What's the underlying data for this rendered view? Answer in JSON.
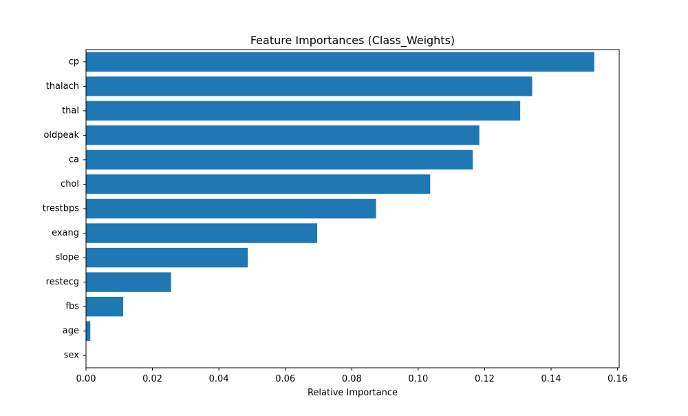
{
  "chart_data": {
    "type": "bar",
    "orientation": "horizontal",
    "title": "Feature Importances (Class_Weights)",
    "xlabel": "Relative Importance",
    "ylabel": "",
    "categories": [
      "cp",
      "thalach",
      "thal",
      "oldpeak",
      "ca",
      "chol",
      "trestbps",
      "exang",
      "slope",
      "restecg",
      "fbs",
      "age",
      "sex"
    ],
    "values": [
      0.153,
      0.1343,
      0.1307,
      0.1184,
      0.1164,
      0.1036,
      0.0873,
      0.0696,
      0.0487,
      0.0256,
      0.0112,
      0.0013,
      0.0
    ],
    "xlim": [
      0,
      0.1605
    ],
    "xticks": [
      0.0,
      0.02,
      0.04,
      0.06,
      0.08,
      0.1,
      0.12,
      0.14,
      0.16
    ],
    "xtick_labels": [
      "0.00",
      "0.02",
      "0.04",
      "0.06",
      "0.08",
      "0.10",
      "0.12",
      "0.14",
      "0.16"
    ],
    "grid": false,
    "legend": "none",
    "bar_color": "#1f77b4"
  }
}
